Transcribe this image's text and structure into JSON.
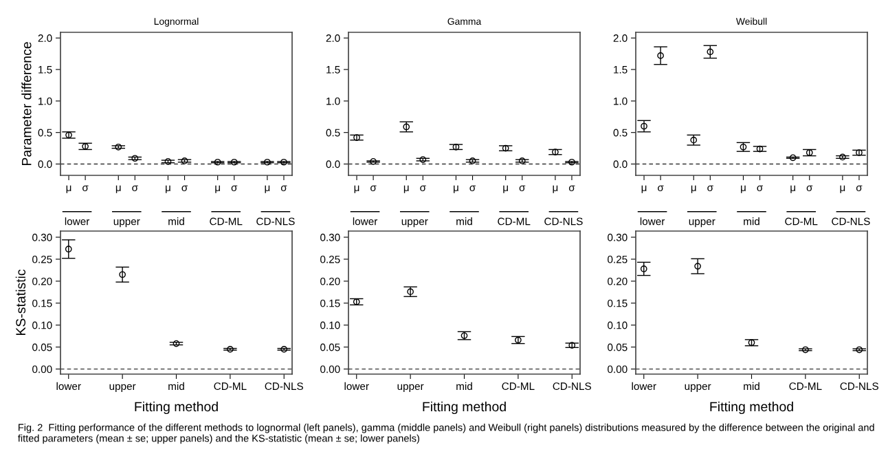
{
  "chart_data": [
    {
      "type": "scatter",
      "title": "Lognormal",
      "ylabel": "Parameter difference",
      "categories": [
        "μ",
        "σ",
        null,
        "μ",
        "σ",
        null,
        "μ",
        "σ",
        null,
        "μ",
        "σ",
        null,
        "μ",
        "σ"
      ],
      "series": [
        {
          "color": "#000000",
          "values": [
            0.46,
            0.28,
            null,
            0.27,
            0.09,
            null,
            0.04,
            0.05,
            null,
            0.03,
            0.03,
            null,
            0.03,
            0.03
          ],
          "errors": [
            0.05,
            0.05,
            null,
            0.02,
            0.02,
            null,
            0.02,
            0.02,
            null,
            0.01,
            0.01,
            null,
            0.01,
            0.01
          ]
        }
      ],
      "ylim": [
        -0.18,
        2.09
      ],
      "yticks": [
        {
          "value": 0,
          "label": "0.0"
        },
        {
          "value": 0.5,
          "label": "0.5"
        },
        {
          "value": 1,
          "label": "1.0"
        },
        {
          "value": 1.5,
          "label": "1.5"
        },
        {
          "value": 2,
          "label": "2.0"
        }
      ],
      "ref_lines": [
        {
          "axis": "y",
          "value": 0,
          "line_style": "dashed"
        }
      ],
      "marker": "circle",
      "annotations": [
        "lower",
        "upper",
        "mid",
        "CD-ML",
        "CD-NLS"
      ]
    },
    {
      "type": "scatter",
      "title": "Gamma",
      "categories": [
        "μ",
        "σ",
        null,
        "μ",
        "σ",
        null,
        "μ",
        "σ",
        null,
        "μ",
        "σ",
        null,
        "μ",
        "σ"
      ],
      "series": [
        {
          "color": "#000000",
          "values": [
            0.42,
            0.04,
            null,
            0.59,
            0.07,
            null,
            0.27,
            0.05,
            null,
            0.25,
            0.05,
            null,
            0.19,
            0.03
          ],
          "errors": [
            0.04,
            0.01,
            null,
            0.08,
            0.02,
            null,
            0.04,
            0.02,
            null,
            0.04,
            0.02,
            null,
            0.04,
            0.01
          ]
        }
      ],
      "ylim": [
        -0.18,
        2.09
      ],
      "yticks": [
        {
          "value": 0,
          "label": "0.0"
        },
        {
          "value": 0.5,
          "label": "0.5"
        },
        {
          "value": 1,
          "label": "1.0"
        },
        {
          "value": 1.5,
          "label": "1.5"
        },
        {
          "value": 2,
          "label": "2.0"
        }
      ],
      "ref_lines": [
        {
          "axis": "y",
          "value": 0,
          "line_style": "dashed"
        }
      ],
      "marker": "circle",
      "annotations": [
        "lower",
        "upper",
        "mid",
        "CD-ML",
        "CD-NLS"
      ]
    },
    {
      "type": "scatter",
      "title": "Weibull",
      "categories": [
        "μ",
        "σ",
        null,
        "μ",
        "σ",
        null,
        "μ",
        "σ",
        null,
        "μ",
        "σ",
        null,
        "μ",
        "σ"
      ],
      "series": [
        {
          "color": "#000000",
          "values": [
            0.6,
            1.72,
            null,
            0.38,
            1.78,
            null,
            0.27,
            0.24,
            null,
            0.1,
            0.18,
            null,
            0.11,
            0.18
          ],
          "errors": [
            0.09,
            0.14,
            null,
            0.08,
            0.1,
            null,
            0.07,
            0.04,
            null,
            0.01,
            0.05,
            null,
            0.02,
            0.04
          ]
        }
      ],
      "ylim": [
        -0.18,
        2.09
      ],
      "yticks": [
        {
          "value": 0,
          "label": "0.0"
        },
        {
          "value": 0.5,
          "label": "0.5"
        },
        {
          "value": 1,
          "label": "1.0"
        },
        {
          "value": 1.5,
          "label": "1.5"
        },
        {
          "value": 2,
          "label": "2.0"
        }
      ],
      "ref_lines": [
        {
          "axis": "y",
          "value": 0,
          "line_style": "dashed"
        }
      ],
      "marker": "circle",
      "annotations": [
        "lower",
        "upper",
        "mid",
        "CD-ML",
        "CD-NLS"
      ]
    },
    {
      "type": "scatter",
      "ylabel": "KS-statistic",
      "xlabel": "Fitting method",
      "categories": [
        "lower",
        "upper",
        "mid",
        "CD-ML",
        "CD-NLS"
      ],
      "series": [
        {
          "color": "#000000",
          "values": [
            0.273,
            0.215,
            0.058,
            0.045,
            0.045
          ],
          "errors": [
            0.021,
            0.017,
            0.003,
            0.002,
            0.002
          ]
        }
      ],
      "ylim": [
        -0.0115,
        0.314
      ],
      "yticks": [
        {
          "value": 0,
          "label": "0.00"
        },
        {
          "value": 0.05,
          "label": "0.05"
        },
        {
          "value": 0.1,
          "label": "0.10"
        },
        {
          "value": 0.15,
          "label": "0.15"
        },
        {
          "value": 0.2,
          "label": "0.20"
        },
        {
          "value": 0.25,
          "label": "0.25"
        },
        {
          "value": 0.3,
          "label": "0.30"
        }
      ],
      "ref_lines": [
        {
          "axis": "y",
          "value": 0,
          "line_style": "dashed"
        }
      ],
      "marker": "circle"
    },
    {
      "type": "scatter",
      "xlabel": "Fitting method",
      "categories": [
        "lower",
        "upper",
        "mid",
        "CD-ML",
        "CD-NLS"
      ],
      "series": [
        {
          "color": "#000000",
          "values": [
            0.153,
            0.176,
            0.076,
            0.066,
            0.054
          ],
          "errors": [
            0.007,
            0.011,
            0.009,
            0.008,
            0.005
          ]
        }
      ],
      "ylim": [
        -0.0115,
        0.314
      ],
      "yticks": [
        {
          "value": 0,
          "label": "0.00"
        },
        {
          "value": 0.05,
          "label": "0.05"
        },
        {
          "value": 0.1,
          "label": "0.10"
        },
        {
          "value": 0.15,
          "label": "0.15"
        },
        {
          "value": 0.2,
          "label": "0.20"
        },
        {
          "value": 0.25,
          "label": "0.25"
        },
        {
          "value": 0.3,
          "label": "0.30"
        }
      ],
      "ref_lines": [
        {
          "axis": "y",
          "value": 0,
          "line_style": "dashed"
        }
      ],
      "marker": "circle"
    },
    {
      "type": "scatter",
      "xlabel": "Fitting method",
      "categories": [
        "lower",
        "upper",
        "mid",
        "CD-ML",
        "CD-NLS"
      ],
      "series": [
        {
          "color": "#000000",
          "values": [
            0.228,
            0.234,
            0.06,
            0.044,
            0.044
          ],
          "errors": [
            0.015,
            0.017,
            0.007,
            0.002,
            0.002
          ]
        }
      ],
      "ylim": [
        -0.0115,
        0.314
      ],
      "yticks": [
        {
          "value": 0,
          "label": "0.00"
        },
        {
          "value": 0.05,
          "label": "0.05"
        },
        {
          "value": 0.1,
          "label": "0.10"
        },
        {
          "value": 0.15,
          "label": "0.15"
        },
        {
          "value": 0.2,
          "label": "0.20"
        },
        {
          "value": 0.25,
          "label": "0.25"
        },
        {
          "value": 0.3,
          "label": "0.30"
        }
      ],
      "ref_lines": [
        {
          "axis": "y",
          "value": 0,
          "line_style": "dashed"
        }
      ],
      "marker": "circle",
      "annotations": [
        "Fig. 2  Fitting performance of the different methods to lognormal (left panels), gamma (middle panels) and Weibull (right panels) distributions measured by the difference between the original and fitted parameters (mean ± se; upper panels) and the KS-statistic (mean ± se; lower panels)"
      ]
    }
  ]
}
